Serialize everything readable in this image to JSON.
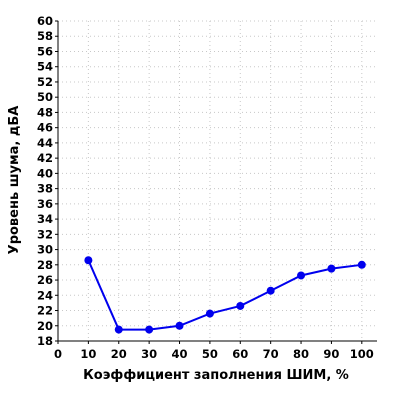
{
  "chart_data": {
    "type": "line",
    "xlabel": "Коэффициент заполнения ШИМ, %",
    "ylabel": "Уровень шума, дБА",
    "xlim": [
      0,
      105
    ],
    "ylim": [
      18,
      60
    ],
    "xticks": [
      0,
      10,
      20,
      30,
      40,
      50,
      60,
      70,
      80,
      90,
      100
    ],
    "yticks": [
      18,
      20,
      22,
      24,
      26,
      28,
      30,
      32,
      34,
      36,
      38,
      40,
      42,
      44,
      46,
      48,
      50,
      52,
      54,
      56,
      58,
      60
    ],
    "grid": true,
    "series": [
      {
        "color": "#0000ee",
        "x": [
          10,
          20,
          30,
          40,
          50,
          60,
          70,
          80,
          90,
          100
        ],
        "y": [
          28.6,
          19.5,
          19.5,
          20.0,
          21.6,
          22.6,
          24.6,
          26.6,
          27.5,
          28.0
        ]
      }
    ]
  }
}
